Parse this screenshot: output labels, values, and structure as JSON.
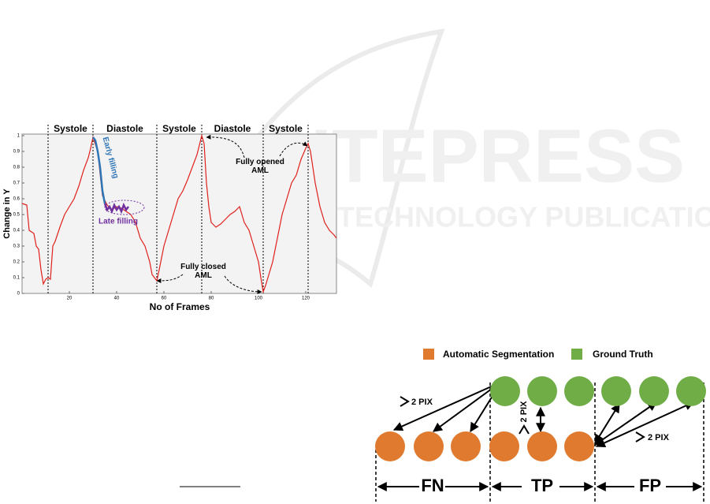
{
  "watermark": {
    "title": "SCITEPRESS",
    "subtitle": "SCIENCE AND TECHNOLOGY PUBLICATIONS"
  },
  "chart_data": {
    "type": "line",
    "xlabel": "No of Frames",
    "ylabel": "Change in Y",
    "xlim": [
      0,
      133
    ],
    "ylim": [
      0,
      1
    ],
    "xticks": [
      20,
      40,
      60,
      80,
      100,
      120
    ],
    "yticks": [
      0,
      0.1,
      0.2,
      0.3,
      0.4,
      0.5,
      0.6,
      0.7,
      0.8,
      0.9,
      1
    ],
    "phases": [
      "Systole",
      "Diastole",
      "Systole",
      "Diastole",
      "Systole"
    ],
    "phase_boundaries": [
      11,
      30,
      57,
      76,
      102,
      121
    ],
    "annotations": [
      "Early filling",
      "Late filling",
      "Fully opened AML",
      "Fully closed AML"
    ],
    "series": [
      {
        "color": "#e0201b",
        "x": [
          0,
          2,
          3,
          5,
          6,
          7,
          8,
          9,
          10,
          11,
          12,
          13,
          14,
          16,
          18,
          20,
          22,
          24,
          26,
          28,
          29,
          30,
          32,
          34,
          36,
          38,
          40,
          42,
          44,
          46,
          48,
          50,
          52,
          54,
          55,
          56,
          57,
          58,
          60,
          62,
          64,
          66,
          68,
          70,
          72,
          74,
          76,
          77,
          78,
          79,
          80,
          82,
          84,
          86,
          88,
          90,
          92,
          94,
          96,
          98,
          100,
          101,
          102,
          103,
          104,
          106,
          108,
          110,
          112,
          114,
          116,
          118,
          120,
          121,
          122,
          124,
          126,
          128,
          130,
          132,
          133
        ],
        "values": [
          0.57,
          0.56,
          0.4,
          0.38,
          0.3,
          0.28,
          0.15,
          0.06,
          0.09,
          0.1,
          0.09,
          0.3,
          0.33,
          0.42,
          0.5,
          0.55,
          0.6,
          0.68,
          0.78,
          0.86,
          0.92,
          0.99,
          0.9,
          0.62,
          0.56,
          0.53,
          0.55,
          0.54,
          0.52,
          0.5,
          0.45,
          0.35,
          0.3,
          0.2,
          0.12,
          0.1,
          0.08,
          0.15,
          0.3,
          0.4,
          0.5,
          0.6,
          0.65,
          0.72,
          0.8,
          0.88,
          1,
          0.95,
          0.7,
          0.55,
          0.45,
          0.42,
          0.44,
          0.47,
          0.5,
          0.52,
          0.55,
          0.45,
          0.4,
          0.3,
          0.2,
          0.1,
          0.01,
          0.05,
          0.1,
          0.2,
          0.35,
          0.5,
          0.6,
          0.7,
          0.75,
          0.85,
          0.92,
          0.95,
          0.9,
          0.7,
          0.55,
          0.45,
          0.4,
          0.37,
          0.35
        ]
      },
      {
        "name": "Early filling",
        "color": "#2e75b6",
        "x": [
          30,
          31,
          32,
          33,
          34,
          35
        ],
        "values": [
          0.99,
          0.97,
          0.9,
          0.8,
          0.65,
          0.57
        ]
      },
      {
        "name": "Late filling",
        "color": "#7030a0",
        "x": [
          35,
          36,
          37,
          38,
          39,
          40,
          41,
          42,
          43,
          44,
          45
        ],
        "values": [
          0.57,
          0.53,
          0.55,
          0.52,
          0.56,
          0.53,
          0.55,
          0.52,
          0.56,
          0.53,
          0.55
        ]
      }
    ]
  },
  "diagram": {
    "legend": [
      {
        "label": "Automatic Segmentation",
        "color": "#e07a2e"
      },
      {
        "label": "Ground Truth",
        "color": "#70ad47"
      }
    ],
    "distance_labels": [
      "2 PIX",
      "2 PIX",
      "2 PIX"
    ],
    "regions": [
      "FN",
      "TP",
      "FP"
    ]
  }
}
